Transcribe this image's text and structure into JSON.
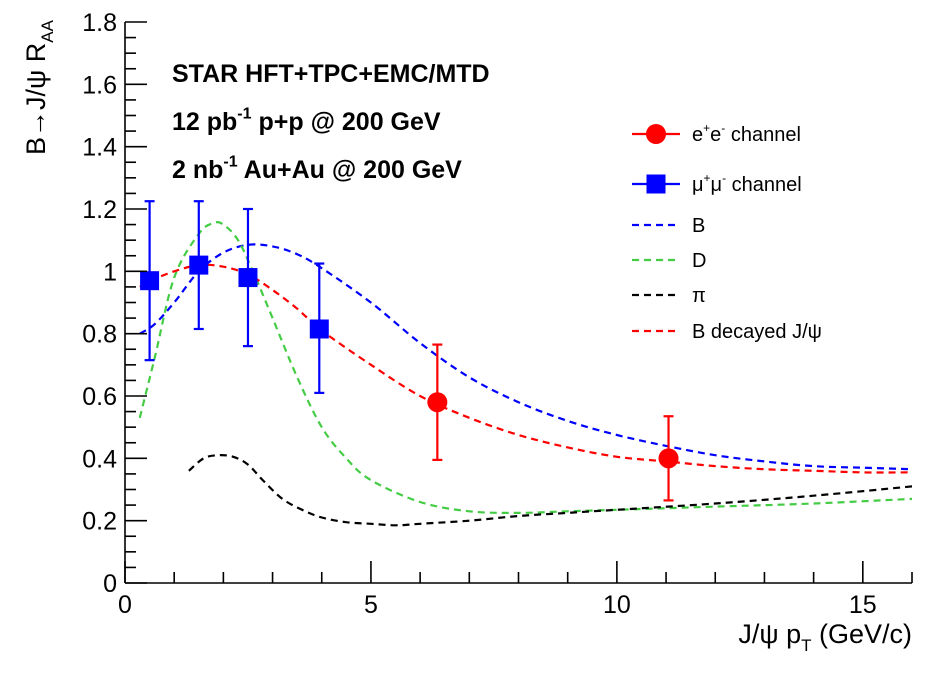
{
  "chart_data": {
    "type": "scatter",
    "title": "",
    "xlabel": "J/ψ p_T (GeV/c)",
    "ylabel": "B→J/ψ R_AA",
    "xlim": [
      0,
      16
    ],
    "ylim": [
      0,
      1.8
    ],
    "x_ticks_major": [
      0,
      5,
      10,
      15
    ],
    "y_ticks_major": [
      0,
      0.2,
      0.4,
      0.6,
      0.8,
      1,
      1.2,
      1.4,
      1.6,
      1.8
    ],
    "y_tick_labels": [
      "0",
      "0.2",
      "0.4",
      "0.6",
      "0.8",
      "1",
      "1.2",
      "1.4",
      "1.6",
      "1.8"
    ],
    "x_tick_labels": [
      "0",
      "5",
      "10",
      "15"
    ],
    "grid": false,
    "legend_position": "right",
    "annotations": [
      "STAR  HFT+TPC+EMC/MTD",
      "12 pb-1 p+p @ 200 GeV",
      "2 nb-1 Au+Au @ 200 GeV"
    ],
    "points": [
      {
        "name": "e+e- channel",
        "marker": "circle",
        "color": "#ff0000",
        "data": [
          {
            "x": 6.35,
            "y": 0.58,
            "ylo": 0.395,
            "yhi": 0.765
          },
          {
            "x": 11.05,
            "y": 0.4,
            "ylo": 0.265,
            "yhi": 0.535
          }
        ]
      },
      {
        "name": "μ+μ- channel",
        "marker": "square",
        "color": "#0000ff",
        "data": [
          {
            "x": 0.5,
            "y": 0.97,
            "ylo": 0.715,
            "yhi": 1.225
          },
          {
            "x": 1.5,
            "y": 1.02,
            "ylo": 0.815,
            "yhi": 1.225
          },
          {
            "x": 2.5,
            "y": 0.98,
            "ylo": 0.76,
            "yhi": 1.2
          },
          {
            "x": 3.95,
            "y": 0.815,
            "ylo": 0.61,
            "yhi": 1.025
          }
        ]
      }
    ],
    "curves": [
      {
        "name": "B",
        "color": "#0000ff",
        "x": [
          0.3,
          0.6,
          1.0,
          1.5,
          2.0,
          2.5,
          3.0,
          3.5,
          4.0,
          5.0,
          6.0,
          7.0,
          8.0,
          9.0,
          10.0,
          11.0,
          12.0,
          13.0,
          14.0,
          15.0,
          16.0
        ],
        "y": [
          0.8,
          0.83,
          0.9,
          1.0,
          1.06,
          1.085,
          1.08,
          1.055,
          1.01,
          0.9,
          0.77,
          0.66,
          0.58,
          0.52,
          0.475,
          0.44,
          0.41,
          0.39,
          0.375,
          0.37,
          0.365
        ]
      },
      {
        "name": "D",
        "color": "#44cc44",
        "x": [
          0.3,
          0.6,
          1.0,
          1.5,
          1.8,
          2.0,
          2.3,
          2.6,
          3.0,
          3.5,
          4.0,
          4.5,
          5.0,
          6.0,
          7.0,
          8.0,
          9.0,
          10.0,
          12.0,
          14.0,
          16.0
        ],
        "y": [
          0.53,
          0.72,
          0.98,
          1.12,
          1.155,
          1.15,
          1.1,
          1.0,
          0.85,
          0.66,
          0.5,
          0.4,
          0.33,
          0.26,
          0.23,
          0.225,
          0.23,
          0.235,
          0.245,
          0.255,
          0.27
        ]
      },
      {
        "name": "π",
        "color": "#000000",
        "x": [
          1.3,
          1.6,
          1.9,
          2.2,
          2.5,
          2.8,
          3.2,
          3.6,
          4.0,
          4.5,
          5.0,
          5.5,
          6.0,
          7.0,
          8.0,
          9.0,
          10.0,
          12.0,
          14.0,
          16.0
        ],
        "y": [
          0.36,
          0.4,
          0.41,
          0.405,
          0.38,
          0.33,
          0.27,
          0.235,
          0.21,
          0.195,
          0.19,
          0.185,
          0.19,
          0.2,
          0.215,
          0.225,
          0.235,
          0.255,
          0.28,
          0.31
        ]
      },
      {
        "name": "B decayed J/ψ",
        "color": "#ff0000",
        "x": [
          0.3,
          0.6,
          1.0,
          1.5,
          2.0,
          2.5,
          3.0,
          3.5,
          4.0,
          5.0,
          6.0,
          7.0,
          8.0,
          9.0,
          10.0,
          11.0,
          12.0,
          13.0,
          14.0,
          15.0,
          16.0
        ],
        "y": [
          0.95,
          0.975,
          1.0,
          1.02,
          1.015,
          0.99,
          0.94,
          0.88,
          0.81,
          0.7,
          0.6,
          0.53,
          0.475,
          0.435,
          0.405,
          0.39,
          0.375,
          0.365,
          0.36,
          0.355,
          0.355
        ]
      }
    ],
    "legend": [
      {
        "label": "e+e- channel",
        "kind": "marker",
        "marker": "circle",
        "color": "#ff0000"
      },
      {
        "label": "μ+μ- channel",
        "kind": "marker",
        "marker": "square",
        "color": "#0000ff"
      },
      {
        "label": "B",
        "kind": "line",
        "color": "#0000ff"
      },
      {
        "label": "D",
        "kind": "line",
        "color": "#44cc44"
      },
      {
        "label": "π",
        "kind": "line",
        "color": "#000000"
      },
      {
        "label": "B decayed J/ψ",
        "kind": "line",
        "color": "#ff0000"
      }
    ]
  }
}
